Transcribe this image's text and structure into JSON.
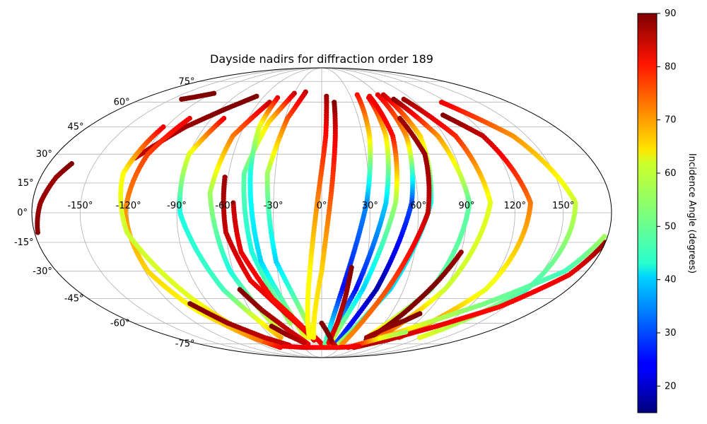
{
  "chart_data": {
    "type": "scatter",
    "projection": "mollweide",
    "title": "Dayside nadirs for diffraction order 189",
    "x_ticks": [
      "-150°",
      "-120°",
      "-90°",
      "-60°",
      "-30°",
      "0°",
      "30°",
      "60°",
      "90°",
      "120°",
      "150°"
    ],
    "y_ticks": [
      "75°",
      "60°",
      "45°",
      "30°",
      "15°",
      "0°",
      "-15°",
      "-30°",
      "-45°",
      "-60°",
      "-75°"
    ],
    "colorbar": {
      "label": "Incidence Angle (degrees)",
      "min": 15,
      "max": 90,
      "ticks": [
        "20",
        "30",
        "40",
        "50",
        "60",
        "70",
        "80",
        "90"
      ],
      "colormap": "jet"
    },
    "grid": true,
    "x_range_deg": [
      -180,
      180
    ],
    "y_range_deg": [
      -90,
      90
    ],
    "tracks": [
      {
        "lon": [
          -178,
          -175,
          -170,
          -165
        ],
        "lat": [
          -10,
          5,
          18,
          25
        ],
        "inc": [
          90,
          88,
          88,
          90
        ]
      },
      {
        "lon": [
          -140,
          -128,
          -118
        ],
        "lat": [
          62,
          64,
          66
        ],
        "inc": [
          90,
          90,
          90
        ]
      },
      {
        "lon": [
          -125,
          -105,
          -85,
          -68
        ],
        "lat": [
          28,
          45,
          56,
          64
        ],
        "inc": [
          85,
          88,
          90,
          90
        ]
      },
      {
        "lon": [
          -108,
          -118,
          -122,
          -118,
          -105,
          -85,
          -70
        ],
        "lat": [
          50,
          30,
          0,
          -30,
          -52,
          -70,
          -78
        ],
        "inc": [
          82,
          76,
          70,
          65,
          62,
          70,
          80
        ]
      },
      {
        "lon": [
          -122,
          -128,
          -122,
          -100,
          -80
        ],
        "lat": [
          45,
          20,
          -10,
          -45,
          -72
        ],
        "inc": [
          82,
          62,
          58,
          60,
          72
        ]
      },
      {
        "lon": [
          -80,
          -90,
          -88,
          -72,
          -50
        ],
        "lat": [
          50,
          30,
          0,
          -40,
          -70
        ],
        "inc": [
          82,
          60,
          45,
          48,
          68
        ]
      },
      {
        "lon": [
          -50,
          -65,
          -70,
          -62,
          -45
        ],
        "lat": [
          60,
          40,
          10,
          -30,
          -65
        ],
        "inc": [
          85,
          72,
          55,
          45,
          60
        ]
      },
      {
        "lon": [
          -30,
          -42,
          -50,
          -45,
          -30
        ],
        "lat": [
          66,
          48,
          20,
          -20,
          -60
        ],
        "inc": [
          85,
          65,
          50,
          45,
          55
        ]
      },
      {
        "lon": [
          -45,
          -48,
          -46,
          -40,
          -20
        ],
        "lat": [
          63,
          45,
          20,
          -25,
          -70
        ],
        "inc": [
          82,
          60,
          45,
          40,
          60
        ]
      },
      {
        "lon": [
          -18,
          -28,
          -35,
          -30,
          -10
        ],
        "lat": [
          67,
          50,
          20,
          -25,
          -68
        ],
        "inc": [
          85,
          75,
          55,
          40,
          60
        ]
      },
      {
        "lon": [
          -62,
          -60,
          -50,
          -30,
          -10
        ],
        "lat": [
          18,
          -10,
          -35,
          -55,
          -72
        ],
        "inc": [
          88,
          85,
          82,
          82,
          82
        ]
      },
      {
        "lon": [
          -55,
          -52,
          -38,
          -20,
          0
        ],
        "lat": [
          5,
          -20,
          -45,
          -62,
          -75
        ],
        "inc": [
          85,
          82,
          80,
          80,
          82
        ]
      },
      {
        "lon": [
          -105,
          -90,
          -70,
          -50
        ],
        "lat": [
          -48,
          -60,
          -70,
          -76
        ],
        "inc": [
          90,
          88,
          85,
          85
        ]
      },
      {
        "lon": [
          -60,
          -50,
          -35,
          -20
        ],
        "lat": [
          -40,
          -52,
          -65,
          -75
        ],
        "inc": [
          90,
          88,
          85,
          82
        ]
      },
      {
        "lon": [
          -50,
          -40,
          -25
        ],
        "lat": [
          -62,
          -68,
          -74
        ],
        "inc": [
          90,
          88,
          85
        ]
      },
      {
        "lon": [
          5,
          3,
          -2,
          -8,
          -15
        ],
        "lat": [
          64,
          40,
          10,
          -30,
          -70
        ],
        "inc": [
          88,
          80,
          72,
          62,
          62
        ]
      },
      {
        "lon": [
          12,
          10,
          6,
          0,
          -10
        ],
        "lat": [
          60,
          40,
          10,
          -30,
          -70
        ],
        "inc": [
          90,
          82,
          75,
          65,
          62
        ]
      },
      {
        "lon": [
          38,
          35,
          28,
          15,
          5
        ],
        "lat": [
          65,
          40,
          5,
          -40,
          -75
        ],
        "inc": [
          80,
          65,
          35,
          25,
          50
        ]
      },
      {
        "lon": [
          48,
          47,
          40,
          25,
          8
        ],
        "lat": [
          63,
          40,
          5,
          -40,
          -75
        ],
        "inc": [
          82,
          65,
          40,
          25,
          50
        ]
      },
      {
        "lon": [
          50,
          52,
          46,
          30,
          12
        ],
        "lat": [
          64,
          40,
          5,
          -40,
          -75
        ],
        "inc": [
          82,
          80,
          55,
          40,
          60
        ]
      },
      {
        "lon": [
          60,
          62,
          56,
          40,
          20
        ],
        "lat": [
          65,
          40,
          5,
          -40,
          -75
        ],
        "inc": [
          82,
          70,
          30,
          18,
          30
        ]
      },
      {
        "lon": [
          66,
          72,
          68,
          50,
          25
        ],
        "lat": [
          65,
          40,
          5,
          -40,
          -75
        ],
        "inc": [
          85,
          65,
          45,
          40,
          55
        ]
      },
      {
        "lon": [
          64,
          70,
          66,
          48,
          30
        ],
        "lat": [
          50,
          30,
          0,
          -40,
          -75
        ],
        "inc": [
          88,
          88,
          85,
          75,
          70
        ]
      },
      {
        "lon": [
          72,
          85,
          92,
          80,
          55
        ],
        "lat": [
          62,
          40,
          5,
          -40,
          -70
        ],
        "inc": [
          90,
          70,
          50,
          50,
          65
        ]
      },
      {
        "lon": [
          82,
          98,
          105,
          90,
          70
        ],
        "lat": [
          62,
          40,
          5,
          -40,
          -70
        ],
        "inc": [
          88,
          78,
          60,
          58,
          75
        ]
      },
      {
        "lon": [
          102,
          118,
          130,
          120,
          95
        ],
        "lat": [
          52,
          40,
          5,
          -40,
          -70
        ],
        "inc": [
          90,
          85,
          72,
          60,
          75
        ]
      },
      {
        "lon": [
          115,
          140,
          158,
          150,
          120
        ],
        "lat": [
          60,
          40,
          5,
          -40,
          -70
        ],
        "inc": [
          82,
          70,
          58,
          48,
          60
        ]
      },
      {
        "lon": [
          60,
          80,
          100,
          130,
          165,
          178
        ],
        "lat": [
          -72,
          -68,
          -60,
          -48,
          -30,
          -12
        ],
        "inc": [
          72,
          68,
          58,
          52,
          48,
          55
        ]
      },
      {
        "lon": [
          55,
          85,
          115,
          145,
          170,
          180
        ],
        "lat": [
          -78,
          -72,
          -62,
          -50,
          -32,
          -15
        ],
        "inc": [
          88,
          85,
          82,
          80,
          82,
          88
        ]
      },
      {
        "lon": [
          58,
          70,
          82,
          90
        ],
        "lat": [
          -72,
          -55,
          -35,
          -20
        ],
        "inc": [
          90,
          90,
          90,
          88
        ]
      },
      {
        "lon": [
          20,
          18,
          15,
          10
        ],
        "lat": [
          -28,
          -45,
          -60,
          -74
        ],
        "inc": [
          90,
          88,
          85,
          82
        ]
      },
      {
        "lon": [
          0,
          8,
          15,
          20
        ],
        "lat": [
          -60,
          -68,
          -74,
          -76
        ],
        "inc": [
          90,
          90,
          88,
          85
        ]
      },
      {
        "lon": [
          55,
          65,
          78,
          85
        ],
        "lat": [
          -70,
          -64,
          -58,
          -54
        ],
        "inc": [
          88,
          88,
          90,
          90
        ]
      },
      {
        "lon": [
          45,
          60,
          75,
          92
        ],
        "lat": [
          -78,
          -74,
          -70,
          -66
        ],
        "inc": [
          82,
          75,
          60,
          55
        ]
      },
      {
        "lon": [
          -60,
          -30,
          0,
          30,
          60
        ],
        "lat": [
          -77,
          -78,
          -78,
          -78,
          -77
        ],
        "inc": [
          82,
          82,
          80,
          80,
          82
        ]
      }
    ]
  }
}
